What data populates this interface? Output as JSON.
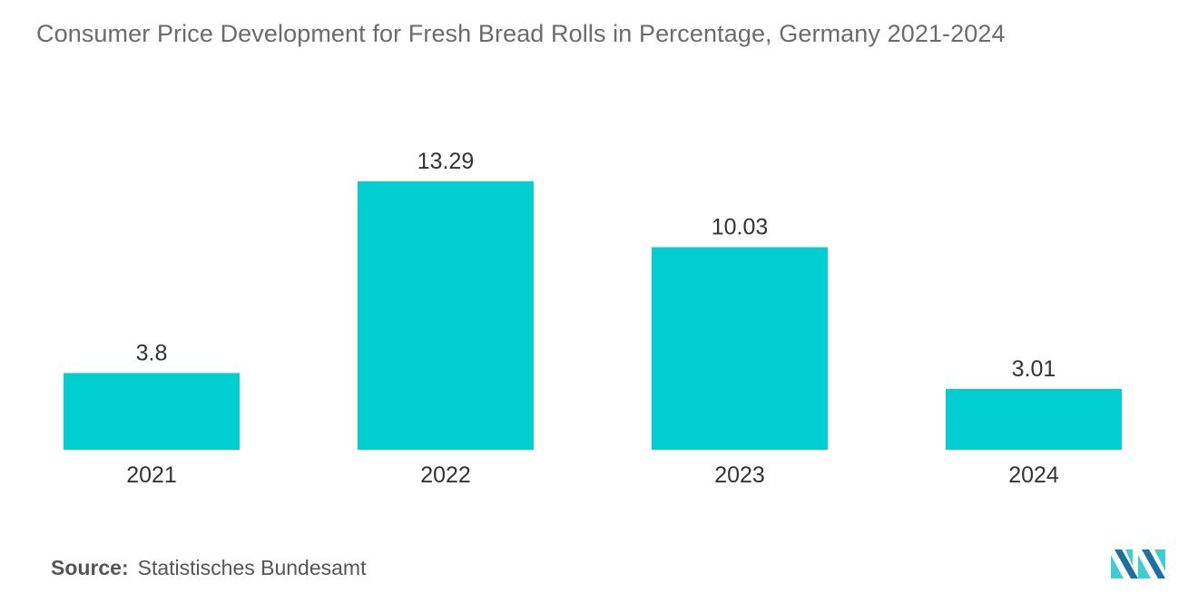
{
  "title": "Consumer Price Development for Fresh Bread Rolls in Percentage, Germany 2021-2024",
  "source": {
    "label": "Source:",
    "text": "Statistisches Bundesamt"
  },
  "logo_icon": "mordor-intelligence-logo",
  "colors": {
    "bar": "#00CED1",
    "logo_dark": "#1f6fa3",
    "logo_light": "#3ccdd0"
  },
  "chart_data": {
    "type": "bar",
    "categories": [
      "2021",
      "2022",
      "2023",
      "2024"
    ],
    "values": [
      3.8,
      13.29,
      10.03,
      3.01
    ],
    "value_labels": [
      "3.8",
      "13.29",
      "10.03",
      "3.01"
    ],
    "title": "Consumer Price Development for Fresh Bread Rolls in Percentage, Germany 2021-2024",
    "xlabel": "",
    "ylabel": "",
    "ylim": [
      0,
      13.29
    ],
    "grid": false,
    "legend": "none"
  }
}
